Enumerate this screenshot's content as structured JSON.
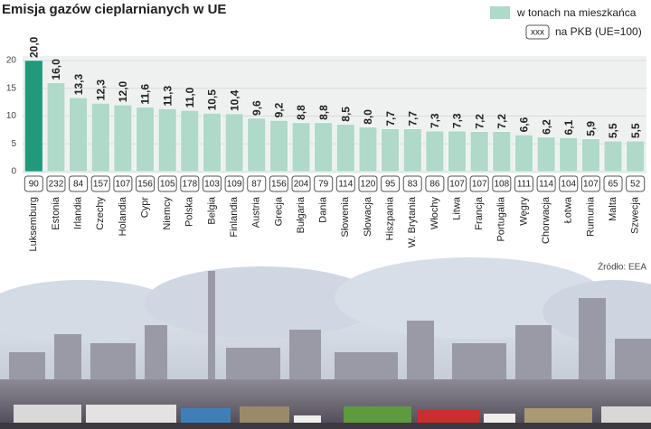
{
  "chart_data": {
    "type": "bar",
    "title": "Emisja gazów cieplarnianych w UE",
    "legend": {
      "bar_label": "w tonach na mieszkańca",
      "box_sample": "xxx",
      "box_label": "na PKB (UE=100)"
    },
    "source": "Źródło: EEA",
    "categories": [
      "Luksemburg",
      "Estonia",
      "Irlandia",
      "Czechy",
      "Holandia",
      "Cypr",
      "Niemcy",
      "Polska",
      "Belgia",
      "Finlandia",
      "Austria",
      "Grecja",
      "Bułgaria",
      "Dania",
      "Słowenia",
      "Słowacja",
      "Hiszpania",
      "W. Brytania",
      "Włochy",
      "Litwa",
      "Francja",
      "Portugalia",
      "Węgry",
      "Chorwacja",
      "Łotwa",
      "Rumunia",
      "Malta",
      "Szwecja"
    ],
    "values": [
      20.0,
      16.0,
      13.3,
      12.3,
      12.0,
      11.6,
      11.3,
      11.0,
      10.5,
      10.4,
      9.6,
      9.2,
      8.8,
      8.8,
      8.5,
      8.0,
      7.7,
      7.7,
      7.3,
      7.3,
      7.2,
      7.2,
      6.6,
      6.2,
      6.1,
      5.9,
      5.5,
      5.5
    ],
    "value_labels": [
      "20,0",
      "16,0",
      "13,3",
      "12,3",
      "12,0",
      "11,6",
      "11,3",
      "11,0",
      "10,5",
      "10,4",
      "9,6",
      "9,2",
      "8,8",
      "8,8",
      "8,5",
      "8,0",
      "7,7",
      "7,7",
      "7,3",
      "7,3",
      "7,2",
      "7,2",
      "6,6",
      "6,2",
      "6,1",
      "5,9",
      "5,5",
      "5,5"
    ],
    "pkb": [
      90,
      232,
      84,
      157,
      107,
      156,
      105,
      178,
      103,
      109,
      87,
      156,
      204,
      79,
      114,
      120,
      95,
      83,
      86,
      107,
      107,
      108,
      111,
      114,
      104,
      107,
      65,
      52
    ],
    "color": "#afd9c8",
    "highlight_color": "#1f9a7b",
    "ylim": [
      0,
      20
    ],
    "yticks": [
      0,
      5,
      10,
      15,
      20
    ],
    "grid": true
  }
}
